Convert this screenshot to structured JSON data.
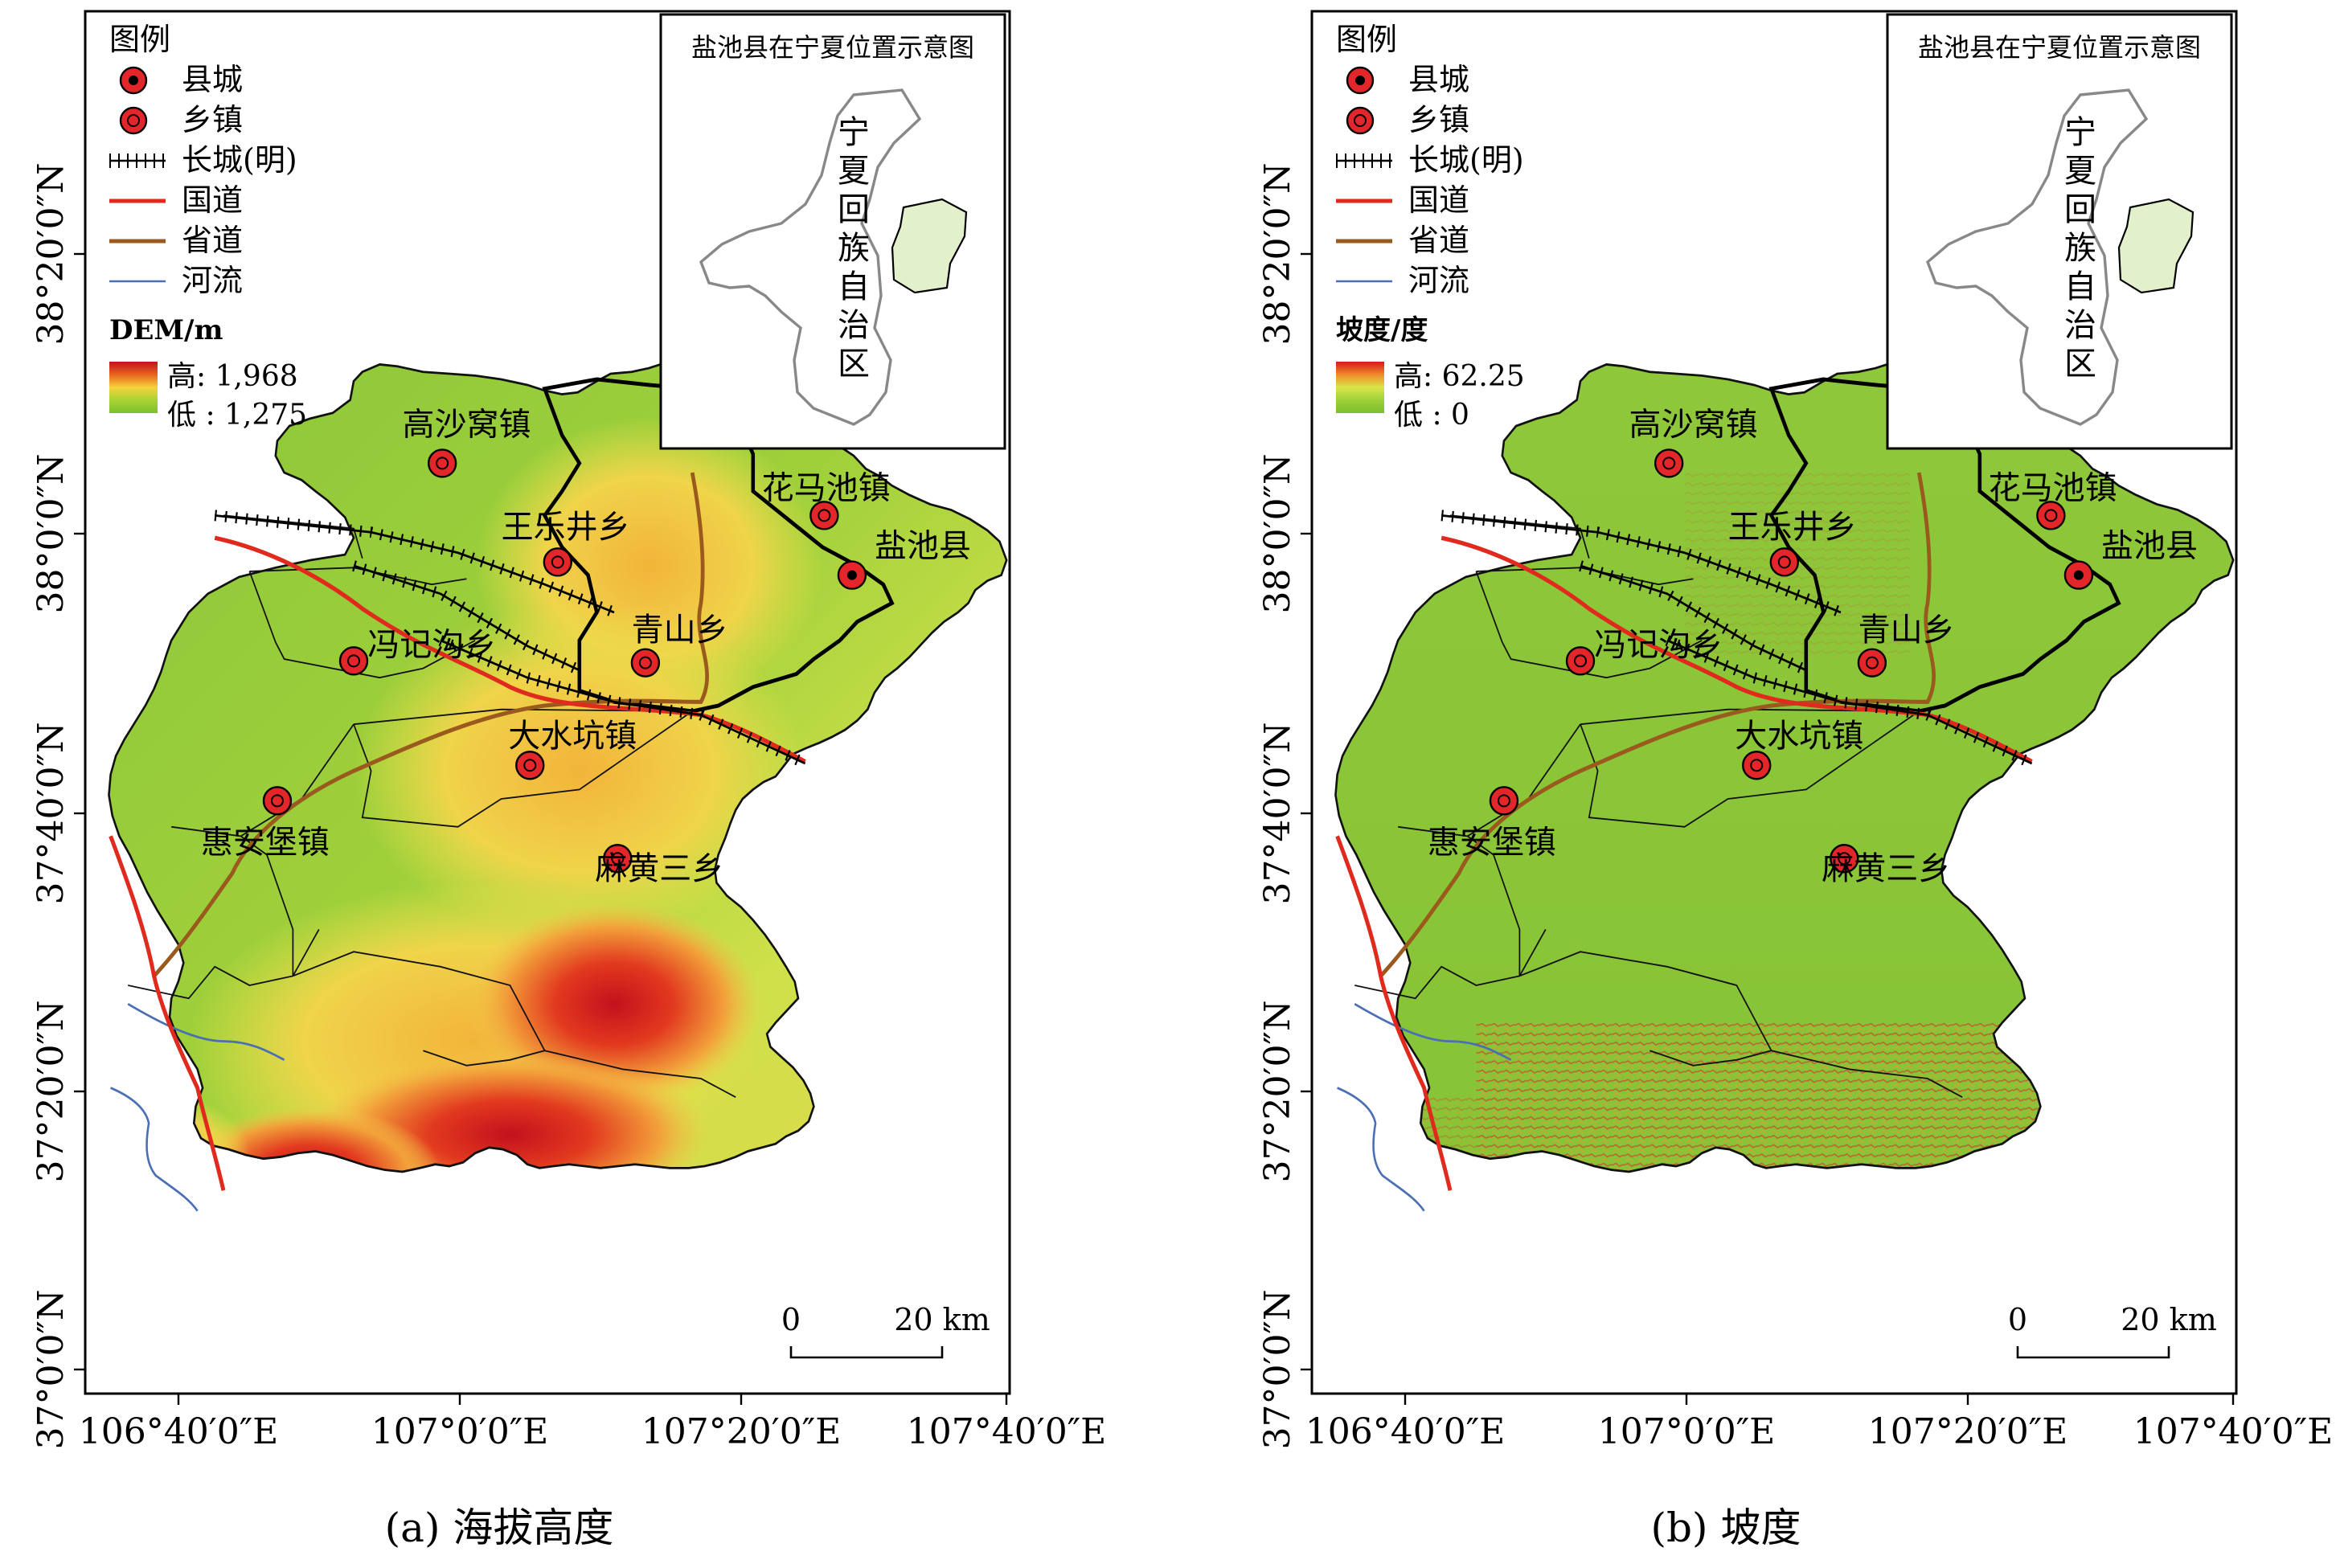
{
  "panels": [
    {
      "id": "a",
      "caption": "(a) 海拔高度",
      "legend": {
        "title": "图例",
        "items": [
          {
            "label": "县城",
            "icon": "county-seat-icon"
          },
          {
            "label": "乡镇",
            "icon": "town-icon"
          },
          {
            "label": "长城(明)",
            "icon": "great-wall-icon"
          },
          {
            "label": "国道",
            "icon": "national-road-icon"
          },
          {
            "label": "省道",
            "icon": "provincial-road-icon"
          },
          {
            "label": "河流",
            "icon": "river-icon"
          }
        ],
        "ramp_title": "DEM/m",
        "ramp_high": "高: 1,968",
        "ramp_low": "低 : 1,275",
        "ramp_colors": [
          "#c2121d",
          "#e8641e",
          "#f5d23a",
          "#a8d435",
          "#7cc02b"
        ]
      },
      "inset": {
        "title": "盐池县在宁夏位置示意图",
        "region_label": [
          "宁",
          "夏",
          "回",
          "族",
          "自",
          "治",
          "区"
        ],
        "highlight_color": "#e3f0cc"
      },
      "places": [
        {
          "name": "高沙窝镇",
          "type": "town"
        },
        {
          "name": "花马池镇",
          "type": "town"
        },
        {
          "name": "王乐井乡",
          "type": "town"
        },
        {
          "name": "盐池县",
          "type": "county"
        },
        {
          "name": "冯记沟乡",
          "type": "town"
        },
        {
          "name": "青山乡",
          "type": "town"
        },
        {
          "name": "大水坑镇",
          "type": "town"
        },
        {
          "name": "惠安堡镇",
          "type": "town"
        },
        {
          "name": "麻黄三乡",
          "type": "town"
        }
      ],
      "scalebar": {
        "start": "0",
        "end": "20 km"
      },
      "x_ticks": [
        "106°40′0″E",
        "107°0′0″E",
        "107°20′0″E",
        "107°40′0″E"
      ],
      "y_ticks": [
        "37°0′0″N",
        "37°20′0″N",
        "37°40′0″N",
        "38°0′0″N",
        "38°20′0″N"
      ]
    },
    {
      "id": "b",
      "caption": "(b) 坡度",
      "legend": {
        "title": "图例",
        "items": [
          {
            "label": "县城",
            "icon": "county-seat-icon"
          },
          {
            "label": "乡镇",
            "icon": "town-icon"
          },
          {
            "label": "长城(明)",
            "icon": "great-wall-icon"
          },
          {
            "label": "国道",
            "icon": "national-road-icon"
          },
          {
            "label": "省道",
            "icon": "provincial-road-icon"
          },
          {
            "label": "河流",
            "icon": "river-icon"
          }
        ],
        "ramp_title": "坡度/度",
        "ramp_high": "高: 62.25",
        "ramp_low": "低 : 0",
        "ramp_colors": [
          "#d7191c",
          "#f08a2a",
          "#d9e64a",
          "#9ccf3a",
          "#7cc02b"
        ]
      },
      "inset": {
        "title": "盐池县在宁夏位置示意图",
        "region_label": [
          "宁",
          "夏",
          "回",
          "族",
          "自",
          "治",
          "区"
        ],
        "highlight_color": "#e3f0cc"
      },
      "places": [
        {
          "name": "高沙窝镇",
          "type": "town"
        },
        {
          "name": "花马池镇",
          "type": "town"
        },
        {
          "name": "王乐井乡",
          "type": "town"
        },
        {
          "name": "盐池县",
          "type": "county"
        },
        {
          "name": "冯记沟乡",
          "type": "town"
        },
        {
          "name": "青山乡",
          "type": "town"
        },
        {
          "name": "大水坑镇",
          "type": "town"
        },
        {
          "name": "惠安堡镇",
          "type": "town"
        },
        {
          "name": "麻黄三乡",
          "type": "town"
        }
      ],
      "scalebar": {
        "start": "0",
        "end": "20 km"
      },
      "x_ticks": [
        "106°40′0″E",
        "107°0′0″E",
        "107°20′0″E",
        "107°40′0″E"
      ],
      "y_ticks": [
        "37°0′0″N",
        "37°20′0″N",
        "37°40′0″N",
        "38°0′0″N",
        "38°20′0″N"
      ]
    }
  ],
  "colors": {
    "national_road": "#e02a1e",
    "provincial_road": "#9a5a1e",
    "river": "#4a6fb5",
    "boundary": "#111111",
    "county_boundary": "#000000",
    "marker_fill": "#e3262a"
  }
}
